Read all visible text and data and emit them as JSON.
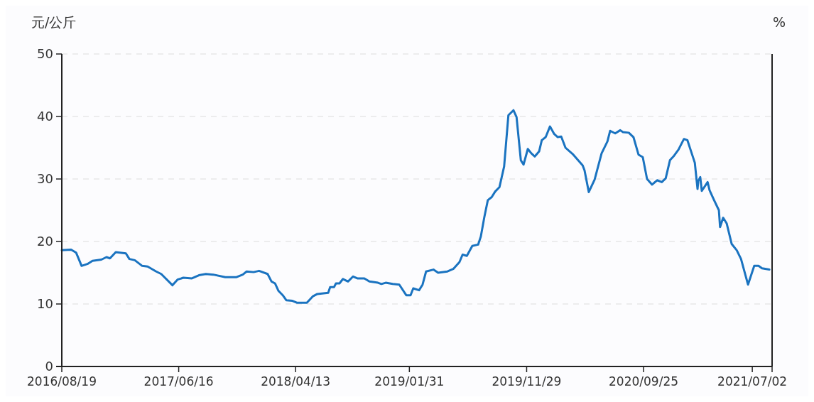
{
  "chart_data": {
    "type": "line",
    "ylabel": "元/公斤",
    "y2label": "%",
    "x": [
      "2016-08-19",
      "2016-09-12",
      "2016-09-25",
      "2016-10-09",
      "2016-10-24",
      "2016-11-06",
      "2016-11-29",
      "2016-12-12",
      "2016-12-21",
      "2017-01-05",
      "2017-01-31",
      "2017-02-09",
      "2017-02-23",
      "2017-03-14",
      "2017-03-28",
      "2017-04-19",
      "2017-05-02",
      "2017-05-31",
      "2017-06-13",
      "2017-06-28",
      "2017-07-20",
      "2017-08-07",
      "2017-08-25",
      "2017-09-13",
      "2017-10-14",
      "2017-11-12",
      "2017-11-28",
      "2017-12-08",
      "2017-12-26",
      "2018-01-09",
      "2018-01-31",
      "2018-02-10",
      "2018-02-19",
      "2018-02-28",
      "2018-03-11",
      "2018-03-20",
      "2018-04-05",
      "2018-04-16",
      "2018-05-12",
      "2018-05-27",
      "2018-06-08",
      "2018-07-06",
      "2018-07-11",
      "2018-07-21",
      "2018-07-26",
      "2018-08-04",
      "2018-08-13",
      "2018-08-26",
      "2018-09-08",
      "2018-09-19",
      "2018-10-07",
      "2018-10-20",
      "2018-11-11",
      "2018-11-20",
      "2018-12-01",
      "2018-12-19",
      "2019-01-05",
      "2019-01-23",
      "2019-02-03",
      "2019-02-10",
      "2019-02-25",
      "2019-03-06",
      "2019-03-15",
      "2019-04-03",
      "2019-04-15",
      "2019-05-09",
      "2019-05-24",
      "2019-06-09",
      "2019-06-17",
      "2019-06-28",
      "2019-07-12",
      "2019-07-27",
      "2019-08-03",
      "2019-08-12",
      "2019-08-21",
      "2019-08-31",
      "2019-09-09",
      "2019-09-20",
      "2019-10-02",
      "2019-10-13",
      "2019-10-26",
      "2019-11-03",
      "2019-11-14",
      "2019-11-21",
      "2019-12-02",
      "2019-12-11",
      "2019-12-20",
      "2019-12-31",
      "2020-01-07",
      "2020-01-17",
      "2020-01-28",
      "2020-02-08",
      "2020-02-17",
      "2020-02-26",
      "2020-03-08",
      "2020-03-28",
      "2020-04-21",
      "2020-04-26",
      "2020-05-07",
      "2020-05-22",
      "2020-06-09",
      "2020-06-24",
      "2020-07-01",
      "2020-07-14",
      "2020-07-27",
      "2020-08-03",
      "2020-08-18",
      "2020-08-30",
      "2020-09-12",
      "2020-09-23",
      "2020-10-04",
      "2020-10-17",
      "2020-10-30",
      "2020-11-11",
      "2020-11-21",
      "2020-12-02",
      "2020-12-11",
      "2020-12-24",
      "2021-01-07",
      "2021-01-16",
      "2021-02-04",
      "2021-02-11",
      "2021-02-13",
      "2021-02-18",
      "2021-02-22",
      "2021-03-09",
      "2021-03-14",
      "2021-03-25",
      "2021-04-07",
      "2021-04-10",
      "2021-04-18",
      "2021-04-27",
      "2021-05-10",
      "2021-05-23",
      "2021-06-03",
      "2021-06-21",
      "2021-07-07",
      "2021-07-18",
      "2021-07-27",
      "2021-08-15"
    ],
    "series": [
      {
        "color": "#1a73c0",
        "values": [
          18.6,
          18.7,
          18.2,
          16.1,
          16.4,
          16.9,
          17.1,
          17.5,
          17.3,
          18.3,
          18.1,
          17.2,
          17.0,
          16.1,
          16.0,
          15.2,
          14.8,
          13.0,
          13.9,
          14.2,
          14.1,
          14.6,
          14.8,
          14.7,
          14.3,
          14.3,
          14.7,
          15.2,
          15.1,
          15.3,
          14.8,
          13.6,
          13.3,
          12.1,
          11.4,
          10.6,
          10.5,
          10.2,
          10.2,
          11.2,
          11.6,
          11.8,
          12.7,
          12.7,
          13.3,
          13.3,
          14.0,
          13.6,
          14.4,
          14.1,
          14.1,
          13.6,
          13.4,
          13.2,
          13.4,
          13.2,
          13.1,
          11.4,
          11.4,
          12.5,
          12.2,
          13.1,
          15.2,
          15.5,
          15.0,
          15.2,
          15.6,
          16.7,
          17.9,
          17.7,
          19.3,
          19.5,
          20.8,
          23.9,
          26.6,
          27.1,
          28.0,
          28.7,
          32.0,
          40.2,
          41.0,
          39.9,
          33.0,
          32.3,
          34.8,
          34.1,
          33.6,
          34.4,
          36.2,
          36.7,
          38.4,
          37.2,
          36.7,
          36.8,
          35.0,
          33.9,
          32.2,
          31.4,
          27.9,
          29.9,
          34.1,
          36.0,
          37.7,
          37.3,
          37.8,
          37.5,
          37.4,
          36.7,
          33.9,
          33.5,
          30.0,
          29.1,
          29.8,
          29.5,
          30.1,
          33.0,
          33.6,
          34.7,
          36.4,
          36.2,
          32.6,
          28.4,
          29.7,
          30.3,
          28.1,
          29.5,
          28.2,
          26.7,
          25.0,
          22.3,
          23.8,
          22.9,
          19.6,
          18.6,
          17.2,
          13.1,
          16.1,
          16.1,
          15.7,
          15.5
        ]
      }
    ],
    "xlim": [
      "2016-08-19",
      "2021-08-22"
    ],
    "xticks": [
      {
        "value": "2016-08-19",
        "label": "2016/08/19"
      },
      {
        "value": "2017-06-16",
        "label": "2017/06/16"
      },
      {
        "value": "2018-04-13",
        "label": "2018/04/13"
      },
      {
        "value": "2019-01-31",
        "label": "2019/01/31"
      },
      {
        "value": "2019-11-29",
        "label": "2019/11/29"
      },
      {
        "value": "2020-09-25",
        "label": "2020/09/25"
      },
      {
        "value": "2021-07-02",
        "label": "2021/07/02"
      }
    ],
    "ylim": [
      0,
      50
    ],
    "yticks": [
      0,
      10,
      20,
      30,
      40,
      50
    ],
    "grid": "y",
    "line_style": "solid"
  }
}
